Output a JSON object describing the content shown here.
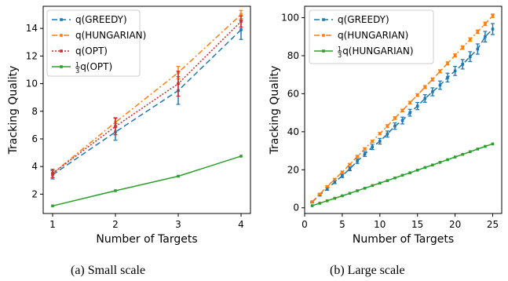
{
  "colors": {
    "blue": "#1f77b4",
    "orange": "#ff7f0e",
    "red": "#d62728",
    "green": "#2ca02c"
  },
  "chart_data": [
    {
      "type": "line",
      "caption": "(a)  Small scale",
      "xlabel": "Number of Targets",
      "ylabel": "Tracking Quality",
      "xlim": [
        0.85,
        4.15
      ],
      "ylim": [
        0.6,
        15.6
      ],
      "xticks": [
        1,
        2,
        3,
        4
      ],
      "yticks": [
        2,
        4,
        6,
        8,
        10,
        12,
        14
      ],
      "grid": false,
      "legend": "top-left",
      "x": [
        1,
        2,
        3,
        4
      ],
      "series": [
        {
          "name": "q(GREEDY)",
          "color": "#1f77b4",
          "dash": "7,4",
          "marker": "square",
          "values": [
            3.4,
            6.5,
            9.5,
            13.9
          ],
          "err": [
            0.3,
            0.6,
            1.0,
            0.7
          ]
        },
        {
          "name": "q(HUNGARIAN)",
          "color": "#ff7f0e",
          "dash": "7,3,2,3",
          "marker": "square",
          "values": [
            3.5,
            7.2,
            10.8,
            15.0
          ],
          "err": [
            0.3,
            0.35,
            0.45,
            0.3
          ]
        },
        {
          "name": "q(OPT)",
          "color": "#d62728",
          "dash": "2,2",
          "marker": "square",
          "values": [
            3.5,
            6.9,
            10.0,
            14.5
          ],
          "err": [
            0.3,
            0.6,
            0.9,
            0.4
          ]
        },
        {
          "name": "q(OPT)",
          "name_prefix": "1/3",
          "color": "#2ca02c",
          "dash": "",
          "marker": "square",
          "values": [
            1.15,
            2.25,
            3.3,
            4.75
          ],
          "err": [
            0,
            0,
            0,
            0
          ]
        }
      ]
    },
    {
      "type": "line",
      "caption": "(b)  Large scale",
      "xlabel": "Number of Targets",
      "ylabel": "Tracking Quality",
      "xlim": [
        0,
        26.2
      ],
      "ylim": [
        -3,
        106
      ],
      "xticks": [
        0,
        5,
        10,
        15,
        20,
        25
      ],
      "yticks": [
        0,
        20,
        40,
        60,
        80,
        100
      ],
      "grid": false,
      "legend": "top-left",
      "x": [
        1,
        2,
        3,
        4,
        5,
        6,
        7,
        8,
        9,
        10,
        11,
        12,
        13,
        14,
        15,
        16,
        17,
        18,
        19,
        20,
        21,
        22,
        23,
        24,
        25
      ],
      "series": [
        {
          "name": "q(GREEDY)",
          "color": "#1f77b4",
          "dash": "7,4",
          "marker": "square",
          "values": [
            3.0,
            6.8,
            9.9,
            13.5,
            16.8,
            20.5,
            24.5,
            28.3,
            32.0,
            35.0,
            38.8,
            43.0,
            45.9,
            50.0,
            53.5,
            57.5,
            61.0,
            64.5,
            68.5,
            72.0,
            75.5,
            79.5,
            83.5,
            90.0,
            94.0
          ],
          "err": [
            0.4,
            0.6,
            0.7,
            0.8,
            0.9,
            1.0,
            1.2,
            1.3,
            1.4,
            1.5,
            1.6,
            1.7,
            1.8,
            1.8,
            1.9,
            2.0,
            2.1,
            2.2,
            2.3,
            2.4,
            2.5,
            2.6,
            2.7,
            2.8,
            2.9
          ]
        },
        {
          "name": "q(HUNGARIAN)",
          "color": "#ff7f0e",
          "dash": "7,3,2,3",
          "marker": "square",
          "values": [
            3.2,
            7.2,
            11.2,
            15.0,
            18.8,
            22.8,
            27.0,
            31.0,
            35.0,
            39.0,
            43.0,
            47.2,
            51.2,
            55.3,
            59.3,
            63.5,
            67.5,
            71.8,
            76.0,
            80.2,
            84.3,
            88.5,
            92.6,
            96.8,
            101.0
          ],
          "err": [
            0.3,
            0.4,
            0.4,
            0.5,
            0.5,
            0.5,
            0.6,
            0.6,
            0.6,
            0.6,
            0.7,
            0.7,
            0.7,
            0.7,
            0.7,
            0.8,
            0.8,
            0.8,
            0.8,
            0.8,
            0.9,
            0.9,
            0.9,
            0.9,
            0.9
          ]
        },
        {
          "name": "q(HUNGARIAN)",
          "name_prefix": "1/3",
          "color": "#2ca02c",
          "dash": "",
          "marker": "square",
          "values": [
            1.1,
            2.4,
            3.7,
            5.0,
            6.3,
            7.6,
            9.0,
            10.3,
            11.7,
            13.0,
            14.3,
            15.7,
            17.1,
            18.4,
            19.8,
            21.2,
            22.5,
            23.9,
            25.3,
            26.7,
            28.1,
            29.5,
            30.9,
            32.3,
            33.6
          ],
          "err": [
            0,
            0,
            0,
            0,
            0,
            0,
            0,
            0,
            0,
            0,
            0,
            0,
            0,
            0,
            0,
            0,
            0,
            0,
            0,
            0,
            0,
            0,
            0,
            0,
            0
          ]
        }
      ]
    }
  ]
}
